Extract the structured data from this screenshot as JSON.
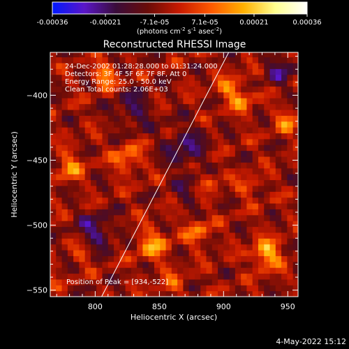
{
  "colorbar": {
    "tick_labels": [
      "-0.00036",
      "-0.00021",
      "-7.1e-05",
      "7.1e-05",
      "0.00021",
      "0.00036"
    ],
    "tick_values": [
      -0.00036,
      -0.00021,
      -7.1e-05,
      7.1e-05,
      0.00021,
      0.00036
    ],
    "range": [
      -0.00036,
      0.00036
    ],
    "units_prefix": "(photons cm",
    "units_sup1": "-2",
    "units_mid1": " s",
    "units_sup2": "-1",
    "units_mid2": " asec",
    "units_sup3": "-2",
    "units_suffix": ")",
    "colors": [
      "#0018ff",
      "#5a16c8",
      "#3a0c3a",
      "#6a0c08",
      "#c81a00",
      "#ff5a00",
      "#ffb000",
      "#ffff90",
      "#ffffff"
    ]
  },
  "chart_data": {
    "type": "heatmap",
    "title": "Reconstructed RHESSI Image",
    "xlabel": "Heliocentric X (arcsec)",
    "ylabel": "Heliocentric Y (arcsec)",
    "xlim": [
      765,
      958
    ],
    "ylim": [
      -555,
      -367
    ],
    "x_ticks": [
      800,
      850,
      900,
      950
    ],
    "y_ticks": [
      -400,
      -450,
      -500,
      -550
    ],
    "x_tick_labels": [
      "800",
      "850",
      "900",
      "950"
    ],
    "y_tick_labels": [
      "−400",
      "−450",
      "−500",
      "−550"
    ],
    "annotations": [
      "24-Dec-2002 01:28:28.000 to 01:31:24.000",
      "Detectors: 3F 4F 5F 6F 7F 8F, Att 0",
      "Energy Range: 25.0 - 50.0 keV",
      "Clean     Total counts: 2.06E+03"
    ],
    "peak_label": "Position of Peak = [934,-522]",
    "peak": [
      934,
      -522
    ],
    "limb_line": [
      [
        805,
        -555
      ],
      [
        904,
        -367
      ]
    ],
    "grid": false
  },
  "footer": {
    "date": "4-May-2022 15:12"
  }
}
